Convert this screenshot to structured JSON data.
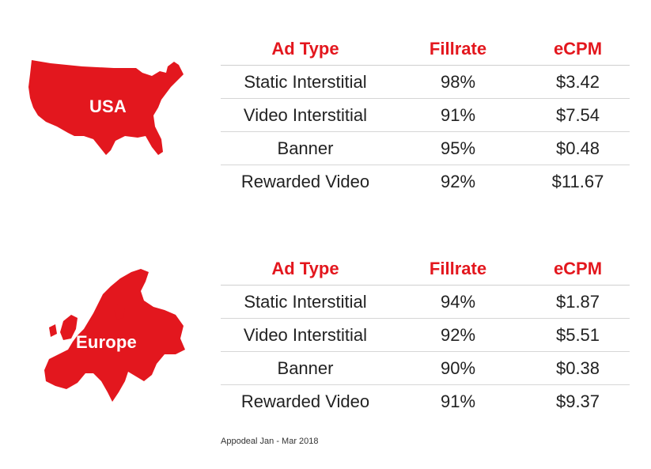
{
  "colors": {
    "accent": "#e3171e",
    "text": "#222222",
    "divider": "#d6d6d6"
  },
  "chart_data": [
    {
      "type": "table",
      "region_label": "USA",
      "columns": [
        "Ad Type",
        "Fillrate",
        "eCPM"
      ],
      "rows": [
        [
          "Static Interstitial",
          "98%",
          "$3.42"
        ],
        [
          "Video Interstitial",
          "91%",
          "$7.54"
        ],
        [
          "Banner",
          "95%",
          "$0.48"
        ],
        [
          "Rewarded Video",
          "92%",
          "$11.67"
        ]
      ]
    },
    {
      "type": "table",
      "region_label": "Europe",
      "columns": [
        "Ad Type",
        "Fillrate",
        "eCPM"
      ],
      "rows": [
        [
          "Static Interstitial",
          "94%",
          "$1.87"
        ],
        [
          "Video Interstitial",
          "92%",
          "$5.51"
        ],
        [
          "Banner",
          "90%",
          "$0.38"
        ],
        [
          "Rewarded Video",
          "91%",
          "$9.37"
        ]
      ]
    }
  ],
  "source_note": "Appodeal Jan - Mar 2018"
}
